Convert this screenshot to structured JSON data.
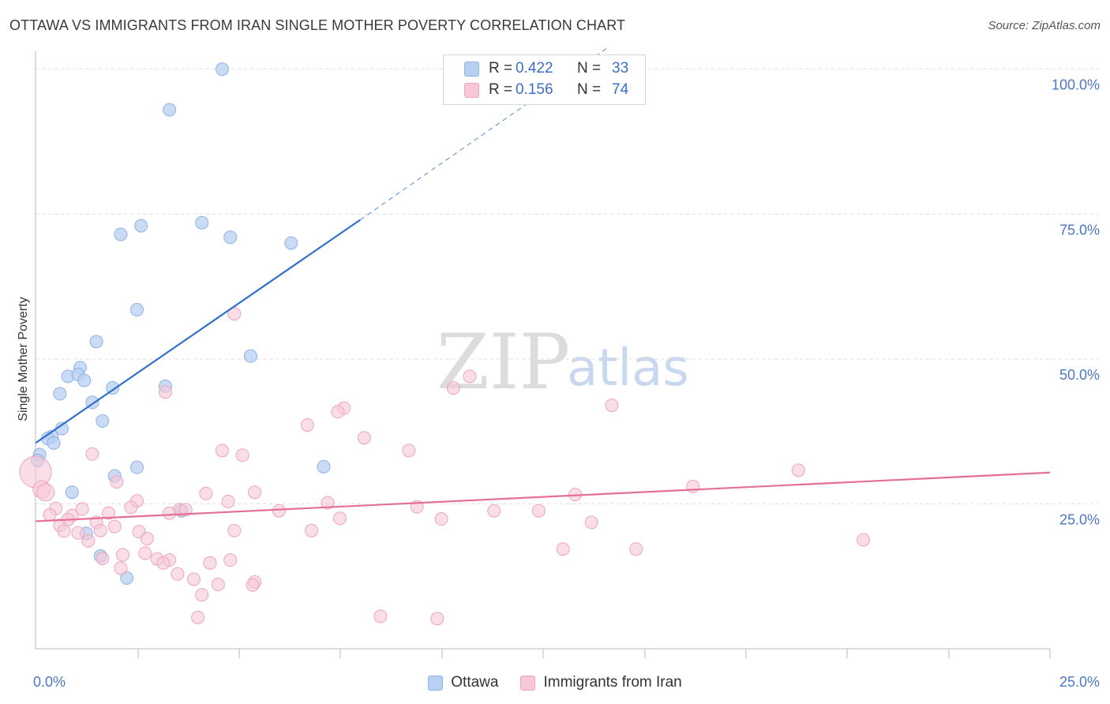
{
  "title": "OTTAWA VS IMMIGRANTS FROM IRAN SINGLE MOTHER POVERTY CORRELATION CHART",
  "source": "Source: ZipAtlas.com",
  "watermark": {
    "zip": "ZIP",
    "atlas": "atlas"
  },
  "colors": {
    "ottawa_fill": "#b8d0f2",
    "ottawa_stroke": "#8fb1e3",
    "ottawa_line": "#2f6fca",
    "iran_fill": "#f7c8d7",
    "iran_stroke": "#eea4bc",
    "iran_line": "#e46f97",
    "tick_text": "#4a78c2",
    "grid": "#dddddd"
  },
  "legend": {
    "ottawa": {
      "r_label": "R =",
      "r_value": "0.422",
      "n_label": "N =",
      "n_value": "33"
    },
    "iran": {
      "r_label": "R =",
      "r_value": "0.156",
      "n_label": "N =",
      "n_value": "74"
    }
  },
  "chart_data": {
    "type": "scatter",
    "title": "OTTAWA VS IMMIGRANTS FROM IRAN SINGLE MOTHER POVERTY CORRELATION CHART",
    "xlabel": "",
    "ylabel": "Single Mother Poverty",
    "xlim": [
      0,
      25
    ],
    "ylim": [
      0,
      102
    ],
    "x_ticks": [
      0,
      25
    ],
    "x_tick_labels": [
      "0.0%",
      "25.0%"
    ],
    "y_ticks": [
      25,
      50,
      75,
      100
    ],
    "y_tick_labels": [
      "25.0%",
      "50.0%",
      "75.0%",
      "100.0%"
    ],
    "grid": true,
    "legend_position": "top-center",
    "series": [
      {
        "name": "Ottawa",
        "points": [
          [
            4.6,
            100
          ],
          [
            3.3,
            93
          ],
          [
            2.1,
            71.5
          ],
          [
            2.6,
            73
          ],
          [
            4.1,
            73.5
          ],
          [
            4.8,
            71
          ],
          [
            6.3,
            70
          ],
          [
            2.5,
            58.5
          ],
          [
            1.5,
            53
          ],
          [
            5.3,
            50.5
          ],
          [
            1.1,
            48.5
          ],
          [
            0.8,
            47
          ],
          [
            1.05,
            47.3
          ],
          [
            1.2,
            46.3
          ],
          [
            3.2,
            45.3
          ],
          [
            1.9,
            45
          ],
          [
            0.6,
            44
          ],
          [
            1.4,
            42.5
          ],
          [
            1.65,
            39.3
          ],
          [
            0.65,
            38
          ],
          [
            0.4,
            36.6
          ],
          [
            0.3,
            36.3
          ],
          [
            0.45,
            35.5
          ],
          [
            0.1,
            33.5
          ],
          [
            0.05,
            32.5
          ],
          [
            2.5,
            31.3
          ],
          [
            7.1,
            31.4
          ],
          [
            1.95,
            29.8
          ],
          [
            0.9,
            27
          ],
          [
            3.6,
            23.8
          ],
          [
            1.25,
            19.9
          ],
          [
            1.6,
            16
          ],
          [
            2.25,
            12.2
          ]
        ]
      },
      {
        "name": "Immigrants from Iran",
        "points": [
          [
            0.0,
            30.5
          ],
          [
            0.15,
            27.5
          ],
          [
            0.25,
            27
          ],
          [
            4.9,
            57.8
          ],
          [
            10.7,
            47
          ],
          [
            10.3,
            45
          ],
          [
            14.2,
            42
          ],
          [
            3.2,
            44.3
          ],
          [
            7.6,
            41.5
          ],
          [
            7.45,
            40.9
          ],
          [
            6.7,
            38.6
          ],
          [
            8.1,
            36.4
          ],
          [
            9.2,
            34.2
          ],
          [
            4.6,
            34.2
          ],
          [
            5.1,
            33.4
          ],
          [
            1.4,
            33.6
          ],
          [
            18.8,
            30.8
          ],
          [
            2.0,
            28.8
          ],
          [
            16.2,
            28
          ],
          [
            5.4,
            27
          ],
          [
            4.2,
            26.8
          ],
          [
            13.3,
            26.6
          ],
          [
            2.5,
            25.5
          ],
          [
            4.75,
            25.4
          ],
          [
            7.2,
            25.2
          ],
          [
            9.4,
            24.5
          ],
          [
            2.35,
            24.4
          ],
          [
            3.55,
            24
          ],
          [
            3.7,
            24
          ],
          [
            6.0,
            23.8
          ],
          [
            0.5,
            24.2
          ],
          [
            1.15,
            24.1
          ],
          [
            11.3,
            23.8
          ],
          [
            12.4,
            23.8
          ],
          [
            1.8,
            23.4
          ],
          [
            3.3,
            23.4
          ],
          [
            0.35,
            23.1
          ],
          [
            0.9,
            23
          ],
          [
            7.5,
            22.5
          ],
          [
            0.8,
            22.3
          ],
          [
            10.0,
            22.4
          ],
          [
            13.7,
            21.8
          ],
          [
            1.5,
            21.8
          ],
          [
            0.6,
            21.3
          ],
          [
            1.95,
            21.1
          ],
          [
            1.6,
            20.4
          ],
          [
            0.7,
            20.3
          ],
          [
            4.9,
            20.4
          ],
          [
            6.8,
            20.4
          ],
          [
            1.05,
            20
          ],
          [
            2.55,
            20.2
          ],
          [
            2.75,
            19
          ],
          [
            20.4,
            18.8
          ],
          [
            1.3,
            18.6
          ],
          [
            13.0,
            17.2
          ],
          [
            14.8,
            17.2
          ],
          [
            2.7,
            16.5
          ],
          [
            2.15,
            16.2
          ],
          [
            4.8,
            15.3
          ],
          [
            3.0,
            15.5
          ],
          [
            3.3,
            15.3
          ],
          [
            1.65,
            15.6
          ],
          [
            3.15,
            14.8
          ],
          [
            4.3,
            14.8
          ],
          [
            2.1,
            13.9
          ],
          [
            3.5,
            12.9
          ],
          [
            3.9,
            12
          ],
          [
            5.4,
            11.5
          ],
          [
            5.35,
            11
          ],
          [
            4.5,
            11.1
          ],
          [
            4.1,
            9.3
          ],
          [
            4.0,
            5.4
          ],
          [
            8.5,
            5.6
          ],
          [
            9.9,
            5.2
          ]
        ]
      }
    ],
    "trendlines": [
      {
        "series": "Ottawa",
        "from": [
          0,
          35.5
        ],
        "to": [
          8.0,
          74.0
        ],
        "extension_to": [
          15.8,
          112.0
        ]
      },
      {
        "series": "Immigrants from Iran",
        "from": [
          0,
          22.0
        ],
        "to": [
          25,
          30.4
        ]
      }
    ]
  },
  "legend_bottom": {
    "ottawa": "Ottawa",
    "iran": "Immigrants from Iran"
  }
}
